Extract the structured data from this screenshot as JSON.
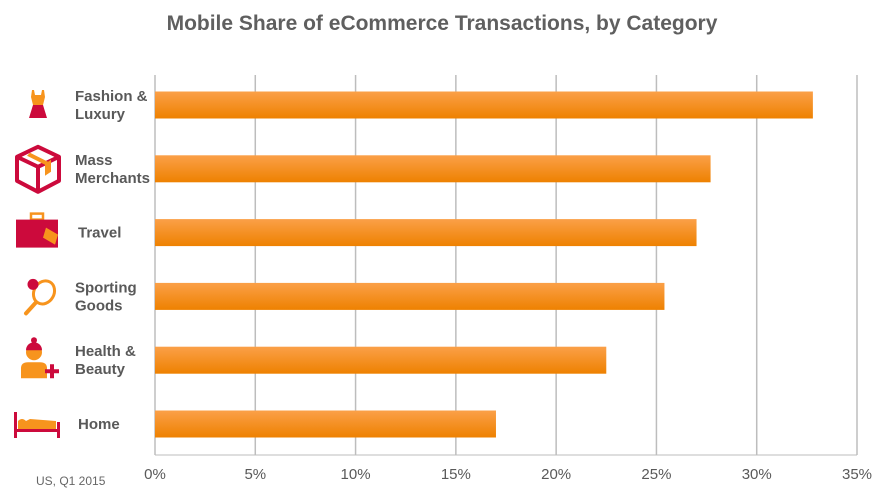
{
  "chart_data": {
    "type": "bar",
    "orientation": "horizontal",
    "title": "Mobile Share of eCommerce Transactions, by Category",
    "categories": [
      {
        "label": [
          "Fashion &",
          "Luxury"
        ],
        "icon": "dress-icon"
      },
      {
        "label": [
          "Mass",
          "Merchants"
        ],
        "icon": "box-icon"
      },
      {
        "label": [
          "Travel"
        ],
        "icon": "suitcase-icon"
      },
      {
        "label": [
          "Sporting",
          "Goods"
        ],
        "icon": "tennis-racket-icon"
      },
      {
        "label": [
          "Health &",
          "Beauty"
        ],
        "icon": "person-plus-icon"
      },
      {
        "label": [
          "Home"
        ],
        "icon": "bed-icon"
      }
    ],
    "values": [
      32.8,
      27.7,
      27.0,
      25.4,
      22.5,
      17.0
    ],
    "xlim": [
      0,
      35
    ],
    "xticks": [
      "0%",
      "5%",
      "10%",
      "15%",
      "20%",
      "25%",
      "30%",
      "35%"
    ],
    "grid": true,
    "colors": {
      "bar_top": "#fba048",
      "bar_bottom": "#ee8100",
      "icon_red": "#cc0a3c",
      "icon_orange": "#f7941d"
    }
  },
  "footnote": "US, Q1 2015"
}
